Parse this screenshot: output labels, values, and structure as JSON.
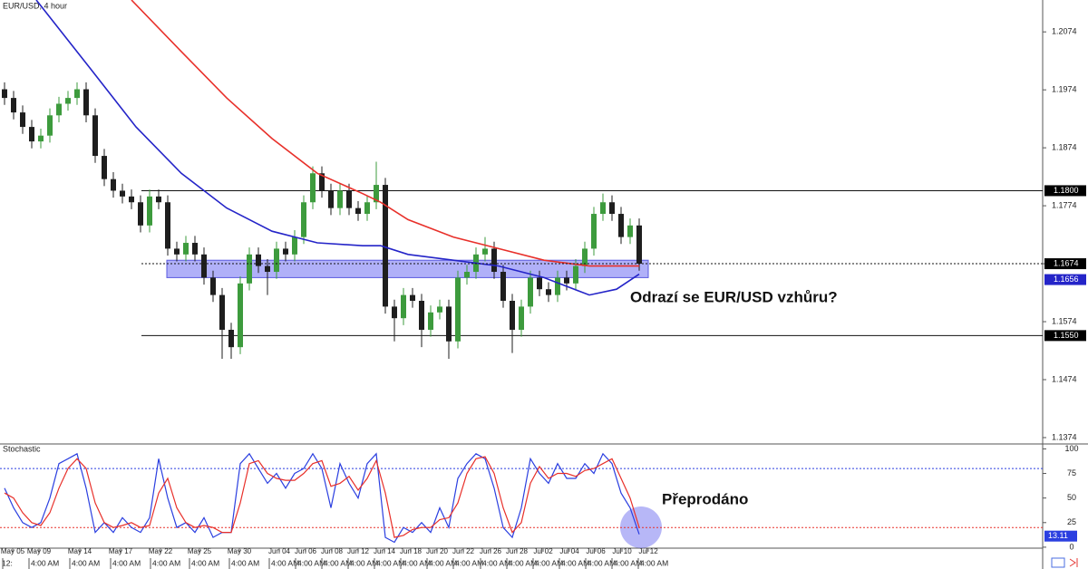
{
  "chart_data": [
    {
      "type": "candlestick",
      "title": "EUR/USD, 4 hour",
      "x": [
        0,
        1,
        2,
        3,
        4,
        5,
        6,
        7,
        8,
        9,
        10,
        11,
        12,
        13,
        14,
        15,
        16,
        17,
        18,
        19,
        20,
        21,
        22,
        23,
        24,
        25,
        26,
        27,
        28,
        29,
        30,
        31,
        32,
        33,
        34,
        35,
        36,
        37,
        38,
        39,
        40,
        41,
        42,
        43,
        44,
        45,
        46,
        47,
        48,
        49,
        50,
        51,
        52,
        53,
        54,
        55,
        56,
        57,
        58,
        59,
        60,
        61,
        62,
        63,
        64,
        65,
        66,
        67,
        68,
        69,
        70
      ],
      "open": [
        1.1975,
        1.196,
        1.1935,
        1.191,
        1.1885,
        1.1895,
        1.193,
        1.195,
        1.196,
        1.1975,
        1.193,
        1.186,
        1.182,
        1.18,
        1.179,
        1.178,
        1.174,
        1.179,
        1.178,
        1.17,
        1.169,
        1.171,
        1.169,
        1.165,
        1.162,
        1.156,
        1.153,
        1.164,
        1.169,
        1.167,
        1.166,
        1.17,
        1.169,
        1.172,
        1.178,
        1.183,
        1.18,
        1.177,
        1.18,
        1.177,
        1.176,
        1.178,
        1.181,
        1.16,
        1.158,
        1.162,
        1.161,
        1.156,
        1.159,
        1.16,
        1.154,
        1.165,
        1.166,
        1.169,
        1.17,
        1.166,
        1.161,
        1.156,
        1.16,
        1.165,
        1.163,
        1.162,
        1.165,
        1.164,
        1.167,
        1.17,
        1.176,
        1.178,
        1.176,
        1.172,
        1.174
      ],
      "high": [
        1.1987,
        1.1972,
        1.1947,
        1.1922,
        1.1907,
        1.1942,
        1.1962,
        1.1972,
        1.1987,
        1.1987,
        1.1942,
        1.1872,
        1.1832,
        1.1812,
        1.1802,
        1.1792,
        1.1802,
        1.1802,
        1.1792,
        1.1712,
        1.1722,
        1.1722,
        1.1702,
        1.1662,
        1.1632,
        1.1572,
        1.1652,
        1.1702,
        1.1702,
        1.1682,
        1.1712,
        1.1712,
        1.1732,
        1.1792,
        1.1842,
        1.1842,
        1.1812,
        1.1812,
        1.1812,
        1.1782,
        1.1792,
        1.185,
        1.1822,
        1.1612,
        1.1632,
        1.1632,
        1.1622,
        1.1602,
        1.1612,
        1.1612,
        1.1662,
        1.1672,
        1.1702,
        1.172,
        1.1712,
        1.1672,
        1.1622,
        1.1612,
        1.1662,
        1.1662,
        1.1642,
        1.1662,
        1.1662,
        1.1682,
        1.1712,
        1.1772,
        1.1795,
        1.1792,
        1.1772,
        1.1752,
        1.1752
      ],
      "low": [
        1.1948,
        1.1923,
        1.1898,
        1.1873,
        1.1873,
        1.1883,
        1.1918,
        1.1938,
        1.1948,
        1.1918,
        1.1848,
        1.1808,
        1.1788,
        1.1778,
        1.1768,
        1.1728,
        1.1728,
        1.1768,
        1.1688,
        1.1678,
        1.1678,
        1.1678,
        1.1638,
        1.1608,
        1.151,
        1.151,
        1.1518,
        1.1628,
        1.1658,
        1.162,
        1.1648,
        1.1678,
        1.1678,
        1.1708,
        1.1768,
        1.1788,
        1.1758,
        1.1758,
        1.1758,
        1.1748,
        1.1748,
        1.1768,
        1.1588,
        1.154,
        1.1568,
        1.1598,
        1.153,
        1.1548,
        1.1578,
        1.151,
        1.1528,
        1.1638,
        1.1648,
        1.1678,
        1.1648,
        1.1598,
        1.152,
        1.1548,
        1.1588,
        1.1618,
        1.1608,
        1.1608,
        1.1628,
        1.1628,
        1.1658,
        1.1688,
        1.1748,
        1.1748,
        1.1708,
        1.1708,
        1.1662
      ],
      "close": [
        1.196,
        1.1935,
        1.191,
        1.1885,
        1.1895,
        1.193,
        1.195,
        1.196,
        1.1975,
        1.193,
        1.186,
        1.182,
        1.18,
        1.179,
        1.178,
        1.174,
        1.179,
        1.178,
        1.17,
        1.169,
        1.171,
        1.169,
        1.165,
        1.162,
        1.156,
        1.153,
        1.164,
        1.169,
        1.167,
        1.166,
        1.17,
        1.169,
        1.172,
        1.178,
        1.183,
        1.18,
        1.177,
        1.18,
        1.177,
        1.176,
        1.178,
        1.181,
        1.16,
        1.158,
        1.162,
        1.161,
        1.156,
        1.159,
        1.16,
        1.154,
        1.165,
        1.166,
        1.169,
        1.17,
        1.166,
        1.161,
        1.156,
        1.16,
        1.165,
        1.163,
        1.162,
        1.165,
        1.164,
        1.167,
        1.17,
        1.176,
        1.178,
        1.176,
        1.172,
        1.174,
        1.1674
      ],
      "up_color": "#3d9b3d",
      "down_color": "#1e1e1e",
      "lines": [
        {
          "color": "#e8302a",
          "x": [
            14,
            19.5,
            24.5,
            29.5,
            34.5,
            39.5,
            41.5,
            44.5,
            49.5,
            54.5,
            59.5,
            64.5,
            70
          ],
          "values": [
            1.2129,
            1.204,
            1.196,
            1.189,
            1.183,
            1.1795,
            1.178,
            1.175,
            1.172,
            1.17,
            1.168,
            1.167,
            1.167
          ]
        },
        {
          "color": "#2424c8",
          "x": [
            3.5,
            9.5,
            14.5,
            19.5,
            24.5,
            29.5,
            34.5,
            39.5,
            41.5,
            44.5,
            49.5,
            54.5,
            59.5,
            64.5,
            67.5,
            70
          ],
          "values": [
            1.2129,
            1.201,
            1.191,
            1.183,
            1.177,
            1.173,
            1.171,
            1.1705,
            1.1705,
            1.169,
            1.168,
            1.167,
            1.165,
            1.162,
            1.163,
            1.1656
          ]
        }
      ],
      "zone": {
        "low": 1.165,
        "high": 1.168,
        "color": "#8f8ff5"
      },
      "levels": [
        {
          "value": 1.18,
          "label": "1.1800"
        },
        {
          "value": 1.155,
          "label": "1.1550"
        }
      ],
      "annotation": "Odrazí se EUR/USD vzhůru?",
      "xlim": [
        -0.5,
        114.5
      ],
      "ylim": [
        1.1363,
        1.2129
      ],
      "yticks": [
        1.1374,
        1.1474,
        1.1574,
        1.1674,
        1.1774,
        1.1874,
        1.1974,
        1.2074
      ],
      "xticks": [
        {
          "value": 0.9,
          "label": "May 05"
        },
        {
          "value": 3.8,
          "label": "May 09"
        },
        {
          "value": 8.3,
          "label": "May 14"
        },
        {
          "value": 12.8,
          "label": "May 17"
        },
        {
          "value": 17.2,
          "label": "May 22"
        },
        {
          "value": 21.5,
          "label": "May 25"
        },
        {
          "value": 25.9,
          "label": "May 30"
        },
        {
          "value": 30.3,
          "label": "Jun 04"
        },
        {
          "value": 33.2,
          "label": "Jun 06"
        },
        {
          "value": 36.1,
          "label": "Jun 08"
        },
        {
          "value": 39,
          "label": "Jun 12"
        },
        {
          "value": 41.9,
          "label": "Jun 14"
        },
        {
          "value": 44.8,
          "label": "Jun 18"
        },
        {
          "value": 47.7,
          "label": "Jun 20"
        },
        {
          "value": 50.6,
          "label": "Jun 22"
        },
        {
          "value": 53.6,
          "label": "Jun 26"
        },
        {
          "value": 56.5,
          "label": "Jun 28"
        },
        {
          "value": 59.4,
          "label": "Jul 02"
        },
        {
          "value": 62.3,
          "label": "Jul 04"
        },
        {
          "value": 65.2,
          "label": "Jul 06"
        },
        {
          "value": 68.1,
          "label": "Jul 10"
        },
        {
          "value": 71,
          "label": "Jul 12"
        }
      ],
      "xtick_times": [
        "12:",
        "4:00 AM",
        "4:00 AM",
        "4:00 AM",
        "4:00 AM",
        "4:00 AM",
        "4:00 AM",
        "4:00 AM",
        "4:00 AM",
        "4:00 AM",
        "4:00 AM",
        "4:00 AM",
        "4:00 AM",
        "4:00 AM",
        "4:00 AM",
        "4:00 AM",
        "4:00 AM",
        "4:00 AM",
        "4:00 AM",
        "4:00 AM",
        "4:00 AM",
        "4:00 AM"
      ]
    },
    {
      "type": "line",
      "title": "Stochastic",
      "x": [
        0,
        1,
        2,
        3,
        4,
        5,
        6,
        7,
        8,
        9,
        10,
        11,
        12,
        13,
        14,
        15,
        16,
        17,
        18,
        19,
        20,
        21,
        22,
        23,
        24,
        25,
        26,
        27,
        28,
        29,
        30,
        31,
        32,
        33,
        34,
        35,
        36,
        37,
        38,
        39,
        40,
        41,
        42,
        43,
        44,
        45,
        46,
        47,
        48,
        49,
        50,
        51,
        52,
        53,
        54,
        55,
        56,
        57,
        58,
        59,
        60,
        61,
        62,
        63,
        64,
        65,
        66,
        67,
        68,
        69,
        70
      ],
      "series": [
        {
          "color": "#2b3fe0",
          "values": [
            60,
            40,
            25,
            20,
            25,
            50,
            85,
            90,
            95,
            60,
            15,
            25,
            15,
            30,
            20,
            15,
            30,
            90,
            50,
            20,
            25,
            15,
            30,
            10,
            15,
            15,
            85,
            95,
            80,
            65,
            75,
            60,
            75,
            80,
            95,
            80,
            40,
            85,
            65,
            50,
            85,
            95,
            10,
            5,
            20,
            15,
            25,
            15,
            40,
            20,
            70,
            85,
            95,
            90,
            60,
            20,
            10,
            40,
            90,
            75,
            65,
            85,
            70,
            70,
            85,
            75,
            95,
            85,
            55,
            40,
            13.11
          ]
        },
        {
          "color": "#e8302a",
          "values": [
            55,
            50,
            35,
            25,
            22,
            35,
            60,
            80,
            90,
            80,
            45,
            25,
            20,
            22,
            25,
            20,
            22,
            55,
            70,
            40,
            25,
            20,
            22,
            20,
            15,
            15,
            45,
            85,
            88,
            75,
            70,
            68,
            68,
            75,
            85,
            88,
            62,
            65,
            72,
            58,
            70,
            88,
            55,
            10,
            12,
            18,
            20,
            20,
            28,
            30,
            45,
            75,
            90,
            92,
            75,
            40,
            15,
            25,
            65,
            82,
            70,
            75,
            75,
            72,
            78,
            80,
            85,
            90,
            70,
            50,
            20
          ]
        }
      ],
      "levels": [
        {
          "value": 80,
          "color": "#2b3fe0"
        },
        {
          "value": 20,
          "color": "#e8302a"
        }
      ],
      "annotation": "Přeprodáno",
      "xlim": [
        -0.5,
        114.5
      ],
      "ylim": [
        -1,
        105
      ],
      "yticks": [
        0,
        25,
        50,
        75,
        100
      ]
    }
  ]
}
